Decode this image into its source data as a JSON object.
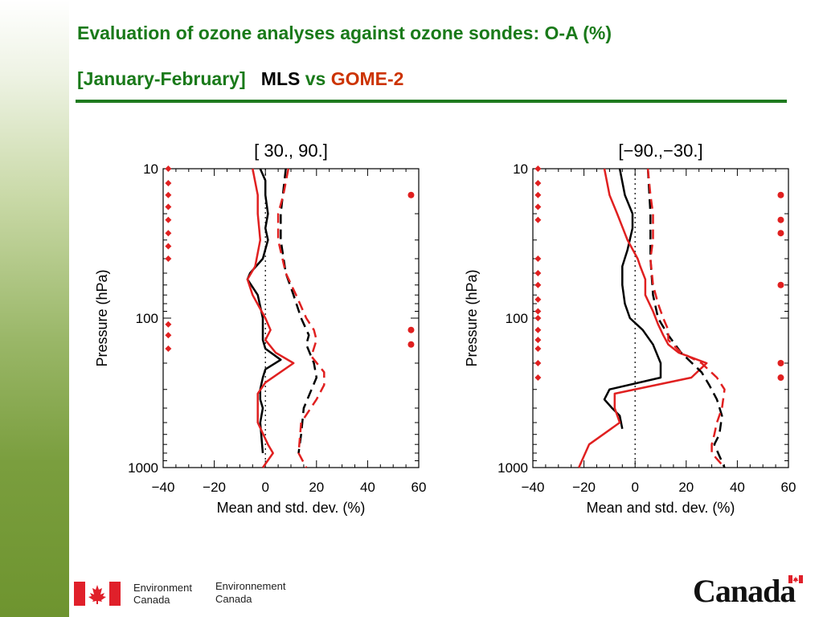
{
  "header": {
    "line1": "Evaluation of ozone analyses against ozone sondes: O-A (%)",
    "period": "[January-February]",
    "mls": "MLS",
    "vs": "vs",
    "gome": "GOME-2",
    "color_text": "#1a7a1a",
    "color_mls": "#000000",
    "color_gome": "#cc3300"
  },
  "footer": {
    "dept_en_1": "Environment",
    "dept_en_2": "Canada",
    "dept_fr_1": "Environnement",
    "dept_fr_2": "Canada",
    "wordmark": "Canada"
  },
  "chart_data": [
    {
      "type": "line",
      "title": "[ 30., 90.]",
      "xlabel": "Mean and std. dev. (%)",
      "ylabel": "Pressure (hPa)",
      "xlim": [
        -40,
        60
      ],
      "ylim": [
        1000,
        10
      ],
      "y_scale": "log",
      "xticks": [
        -40,
        -20,
        0,
        20,
        40,
        60
      ],
      "yticks": [
        10,
        100,
        1000
      ],
      "xtick_labels": [
        "−40",
        "−20",
        "0",
        "20",
        "40",
        "60"
      ],
      "ytick_labels": [
        "10",
        "100",
        "1000"
      ],
      "series": [
        {
          "color": "#000000",
          "style": "solid",
          "points": [
            [
              -2,
              10
            ],
            [
              0,
              12
            ],
            [
              0,
              15
            ],
            [
              1,
              20
            ],
            [
              0,
              25
            ],
            [
              1,
              30
            ],
            [
              -1,
              40
            ],
            [
              -6,
              50
            ],
            [
              -7,
              55
            ],
            [
              -3,
              70
            ],
            [
              -1,
              100
            ],
            [
              -1,
              120
            ],
            [
              -1,
              140
            ],
            [
              0,
              160
            ],
            [
              6,
              190
            ],
            [
              0,
              220
            ],
            [
              -1,
              250
            ],
            [
              -2,
              300
            ],
            [
              -2,
              350
            ],
            [
              -1,
              400
            ],
            [
              -2,
              500
            ],
            [
              -1,
              800
            ]
          ]
        },
        {
          "color": "#e02020",
          "style": "solid",
          "points": [
            [
              -5,
              10
            ],
            [
              -3,
              15
            ],
            [
              -3,
              20
            ],
            [
              -2,
              30
            ],
            [
              -4,
              45
            ],
            [
              -7,
              55
            ],
            [
              -5,
              70
            ],
            [
              0,
              100
            ],
            [
              2,
              120
            ],
            [
              0,
              140
            ],
            [
              4,
              170
            ],
            [
              11,
              200
            ],
            [
              0,
              270
            ],
            [
              -3,
              320
            ],
            [
              -3,
              400
            ],
            [
              -3,
              500
            ],
            [
              1,
              700
            ],
            [
              3,
              800
            ],
            [
              -1,
              1000
            ]
          ]
        },
        {
          "color": "#000000",
          "style": "dashed",
          "points": [
            [
              8,
              10
            ],
            [
              6,
              20
            ],
            [
              6,
              30
            ],
            [
              8,
              50
            ],
            [
              11,
              70
            ],
            [
              14,
              100
            ],
            [
              17,
              130
            ],
            [
              16,
              150
            ],
            [
              19,
              200
            ],
            [
              20,
              250
            ],
            [
              15,
              400
            ],
            [
              14,
              600
            ],
            [
              13,
              800
            ]
          ]
        },
        {
          "color": "#e02020",
          "style": "dashed",
          "points": [
            [
              9,
              10
            ],
            [
              7,
              15
            ],
            [
              5,
              20
            ],
            [
              5,
              30
            ],
            [
              8,
              50
            ],
            [
              12,
              70
            ],
            [
              16,
              100
            ],
            [
              19,
              120
            ],
            [
              20,
              140
            ],
            [
              18,
              180
            ],
            [
              23,
              230
            ],
            [
              23,
              280
            ],
            [
              20,
              350
            ],
            [
              14,
              500
            ],
            [
              13,
              800
            ],
            [
              16,
              1000
            ]
          ]
        }
      ],
      "right_markers": {
        "color": "#e02020",
        "x": 57,
        "y": [
          15,
          120,
          150
        ]
      },
      "left_markers": {
        "color": "#e02020",
        "x": -38,
        "y": [
          10,
          12.5,
          15,
          18,
          22,
          27,
          33,
          40,
          110,
          130,
          160
        ]
      }
    },
    {
      "type": "line",
      "title": "[−90.,−30.]",
      "xlabel": "Mean and std. dev. (%)",
      "ylabel": "Pressure (hPa)",
      "xlim": [
        -40,
        60
      ],
      "ylim": [
        1000,
        10
      ],
      "y_scale": "log",
      "xticks": [
        -40,
        -20,
        0,
        20,
        40,
        60
      ],
      "yticks": [
        10,
        100,
        1000
      ],
      "xtick_labels": [
        "−40",
        "−20",
        "0",
        "20",
        "40",
        "60"
      ],
      "ytick_labels": [
        "10",
        "100",
        "1000"
      ],
      "series": [
        {
          "color": "#000000",
          "style": "solid",
          "points": [
            [
              -6,
              10
            ],
            [
              -4,
              15
            ],
            [
              -1,
              20
            ],
            [
              -1,
              25
            ],
            [
              -3,
              35
            ],
            [
              -5,
              45
            ],
            [
              -5,
              60
            ],
            [
              -4,
              80
            ],
            [
              -2,
              100
            ],
            [
              3,
              120
            ],
            [
              7,
              150
            ],
            [
              10,
              200
            ],
            [
              10,
              250
            ],
            [
              -10,
              300
            ],
            [
              -12,
              350
            ],
            [
              -9,
              400
            ],
            [
              -6,
              450
            ],
            [
              -5,
              550
            ]
          ]
        },
        {
          "color": "#e02020",
          "style": "solid",
          "points": [
            [
              -12,
              10
            ],
            [
              -10,
              15
            ],
            [
              -7,
              20
            ],
            [
              -3,
              30
            ],
            [
              1,
              40
            ],
            [
              2,
              45
            ],
            [
              4,
              55
            ],
            [
              4,
              70
            ],
            [
              7,
              90
            ],
            [
              9,
              110
            ],
            [
              11,
              130
            ],
            [
              13,
              150
            ],
            [
              17,
              170
            ],
            [
              28,
              200
            ],
            [
              22,
              250
            ],
            [
              -8,
              320
            ],
            [
              -8,
              400
            ],
            [
              -6,
              500
            ],
            [
              -18,
              700
            ],
            [
              -22,
              1000
            ]
          ]
        },
        {
          "color": "#000000",
          "style": "dashed",
          "points": [
            [
              5,
              10
            ],
            [
              6,
              20
            ],
            [
              6,
              40
            ],
            [
              7,
              70
            ],
            [
              9,
              100
            ],
            [
              13,
              130
            ],
            [
              18,
              170
            ],
            [
              26,
              230
            ],
            [
              29,
              280
            ],
            [
              32,
              350
            ],
            [
              34,
              450
            ],
            [
              33,
              600
            ],
            [
              31,
              700
            ],
            [
              35,
              1000
            ]
          ]
        },
        {
          "color": "#e02020",
          "style": "dashed",
          "points": [
            [
              5,
              10
            ],
            [
              6,
              15
            ],
            [
              7,
              20
            ],
            [
              7,
              30
            ],
            [
              6,
              40
            ],
            [
              7,
              60
            ],
            [
              9,
              80
            ],
            [
              11,
              100
            ],
            [
              13,
              120
            ],
            [
              13,
              140
            ],
            [
              18,
              170
            ],
            [
              26,
              200
            ],
            [
              32,
              250
            ],
            [
              35,
              300
            ],
            [
              34,
              400
            ],
            [
              32,
              500
            ],
            [
              31,
              600
            ],
            [
              30,
              700
            ],
            [
              30,
              800
            ],
            [
              35,
              1000
            ]
          ]
        }
      ],
      "right_markers": {
        "color": "#e02020",
        "x": 57,
        "y": [
          15,
          22,
          27,
          60,
          200,
          250
        ]
      },
      "left_markers": {
        "color": "#e02020",
        "x": -38,
        "y": [
          10,
          12.5,
          15,
          18,
          22,
          40,
          50,
          60,
          75,
          90,
          100,
          120,
          140,
          160,
          200,
          250
        ]
      }
    }
  ]
}
